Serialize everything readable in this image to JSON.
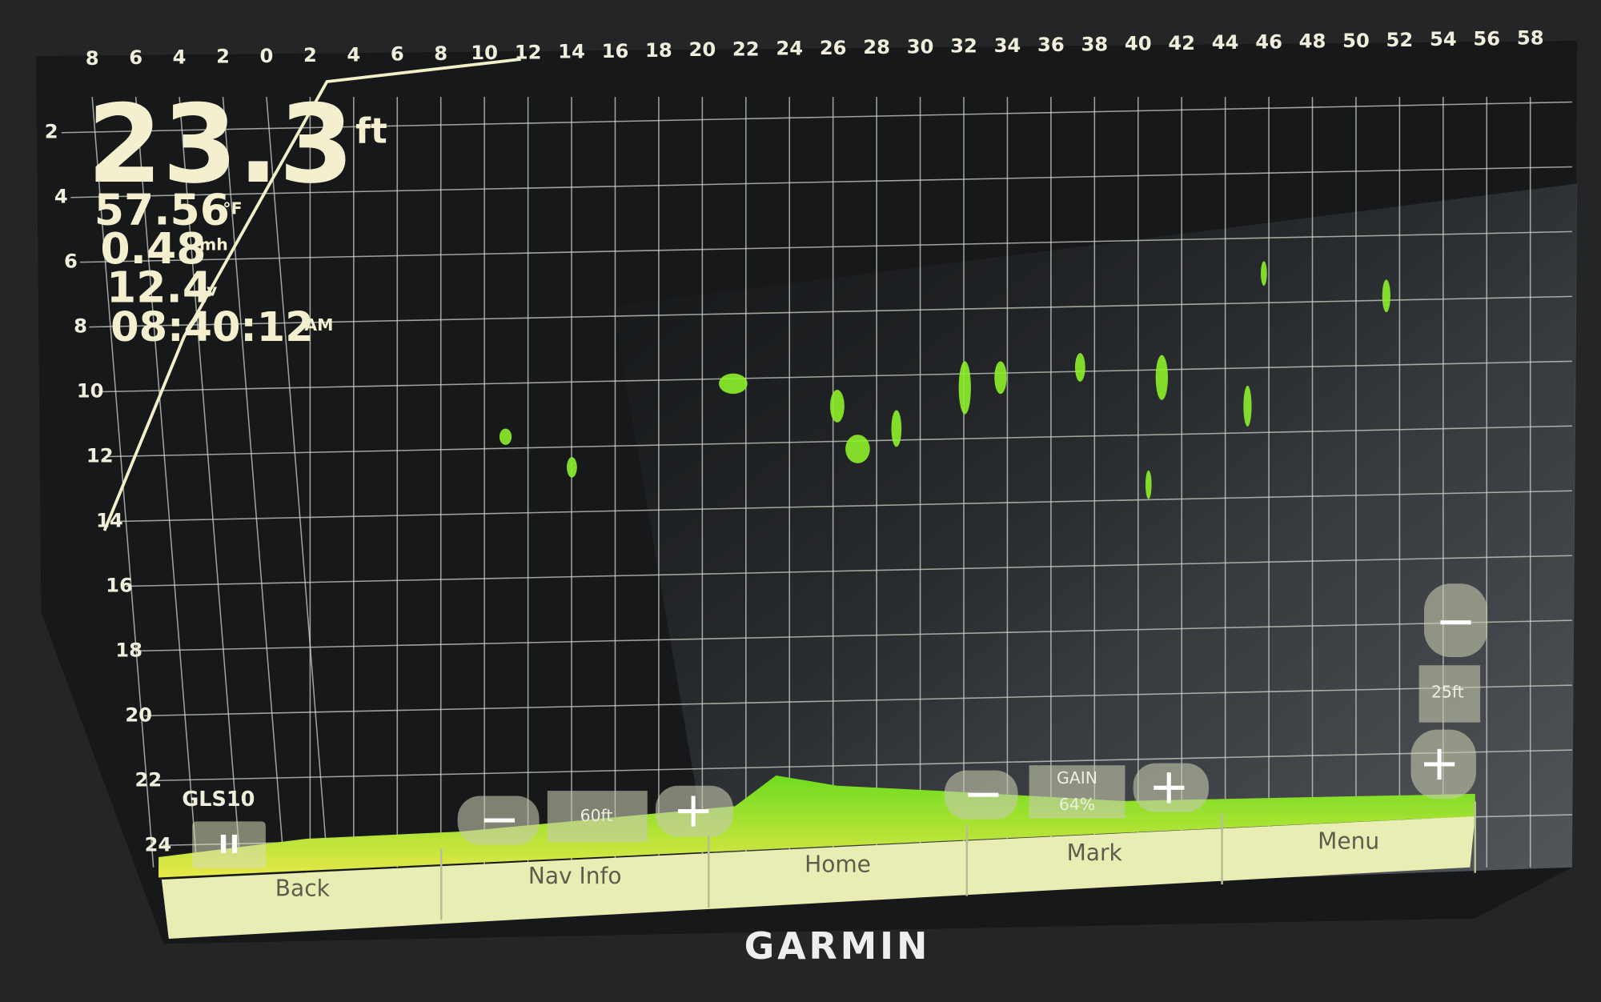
{
  "readouts": {
    "depth": "23.3",
    "depth_unit": "ft",
    "water_temp": "57.56",
    "water_temp_unit": "°F",
    "speed": "0.48",
    "speed_unit": "mh",
    "voltage": "12.4",
    "voltage_unit": "v",
    "time": "08:40:12",
    "time_unit": "AM"
  },
  "range_scale": [
    "8",
    "6",
    "4",
    "2",
    "0",
    "2",
    "4",
    "6",
    "8",
    "10",
    "12",
    "14",
    "16",
    "18",
    "20",
    "22",
    "24",
    "26",
    "28",
    "30",
    "32",
    "34",
    "36",
    "38",
    "40",
    "42",
    "44",
    "46",
    "48",
    "50",
    "52",
    "54",
    "56",
    "58"
  ],
  "depth_scale": [
    "2",
    "4",
    "6",
    "8",
    "10",
    "12",
    "14",
    "16",
    "18",
    "20",
    "22",
    "24"
  ],
  "source": "GLS10",
  "range_control": {
    "value": "60ft"
  },
  "gain_control": {
    "label": "GAIN",
    "value": "64%"
  },
  "zoom_control": {
    "value": "25ft"
  },
  "nav_buttons": [
    "Back",
    "Nav Info",
    "Home",
    "Mark",
    "Menu"
  ],
  "brand": "GARMIN"
}
